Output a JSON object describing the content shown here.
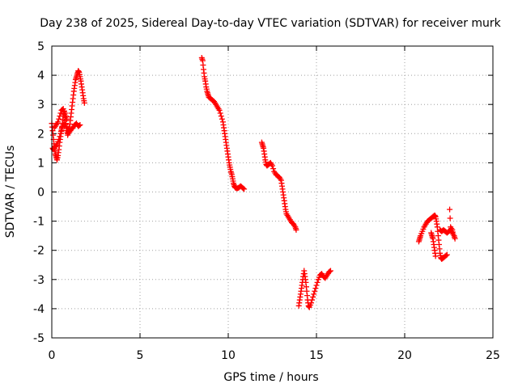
{
  "chart_data": {
    "type": "scatter",
    "title": "Day 238 of 2025, Sidereal Day-to-day VTEC variation (SDTVAR) for receiver murk",
    "xlabel": "GPS time / hours",
    "ylabel": "SDTVAR / TECUs",
    "xlim": [
      0,
      25
    ],
    "ylim": [
      -5,
      5
    ],
    "xticks": [
      "0",
      "5",
      "10",
      "15",
      "20",
      "25"
    ],
    "yticks": [
      "-5",
      "-4",
      "-3",
      "-2",
      "-1",
      "0",
      "1",
      "2",
      "3",
      "4",
      "5"
    ],
    "grid": true,
    "marker": "+",
    "series": [
      {
        "name": "SDTVAR",
        "color": "#ff0000",
        "segments": [
          [
            [
              0.0,
              2.35
            ],
            [
              0.05,
              2.1
            ],
            [
              0.1,
              1.8
            ],
            [
              0.15,
              1.5
            ],
            [
              0.2,
              1.3
            ],
            [
              0.25,
              1.2
            ],
            [
              0.3,
              1.1
            ],
            [
              0.35,
              1.25
            ],
            [
              0.4,
              1.45
            ],
            [
              0.45,
              1.7
            ],
            [
              0.5,
              1.9
            ],
            [
              0.55,
              2.1
            ],
            [
              0.6,
              2.35
            ],
            [
              0.65,
              2.6
            ],
            [
              0.7,
              2.75
            ],
            [
              0.75,
              2.55
            ],
            [
              0.8,
              2.35
            ],
            [
              0.85,
              2.1
            ],
            [
              0.9,
              1.95
            ],
            [
              0.95,
              2.05
            ],
            [
              1.0,
              2.2
            ],
            [
              1.05,
              2.45
            ],
            [
              1.1,
              2.7
            ],
            [
              1.15,
              2.95
            ],
            [
              1.2,
              3.2
            ],
            [
              1.25,
              3.45
            ],
            [
              1.3,
              3.65
            ],
            [
              1.35,
              3.85
            ],
            [
              1.4,
              3.95
            ],
            [
              1.45,
              4.05
            ],
            [
              1.5,
              4.15
            ],
            [
              1.55,
              4.1
            ],
            [
              1.6,
              3.95
            ],
            [
              1.65,
              3.8
            ],
            [
              1.7,
              3.6
            ],
            [
              1.75,
              3.4
            ],
            [
              1.8,
              3.2
            ],
            [
              1.85,
              3.05
            ]
          ],
          [
            [
              0.05,
              1.5
            ],
            [
              0.1,
              1.45
            ],
            [
              0.2,
              1.55
            ],
            [
              0.3,
              1.65
            ],
            [
              0.4,
              1.8
            ],
            [
              0.5,
              2.0
            ],
            [
              0.55,
              2.15
            ],
            [
              0.6,
              2.25
            ],
            [
              0.7,
              2.35
            ],
            [
              0.8,
              2.25
            ],
            [
              0.9,
              2.1
            ],
            [
              1.0,
              2.05
            ],
            [
              1.1,
              2.15
            ],
            [
              1.2,
              2.2
            ],
            [
              1.3,
              2.3
            ],
            [
              1.4,
              2.35
            ],
            [
              1.5,
              2.25
            ],
            [
              1.6,
              2.3
            ]
          ],
          [
            [
              0.15,
              2.2
            ],
            [
              0.25,
              2.3
            ],
            [
              0.35,
              2.4
            ],
            [
              0.45,
              2.6
            ],
            [
              0.55,
              2.8
            ],
            [
              0.65,
              2.85
            ],
            [
              0.75,
              2.7
            ],
            [
              0.85,
              2.5
            ]
          ],
          [
            [
              8.5,
              4.6
            ],
            [
              8.55,
              4.5
            ],
            [
              8.6,
              4.2
            ],
            [
              8.65,
              3.95
            ],
            [
              8.7,
              3.8
            ],
            [
              8.75,
              3.6
            ],
            [
              8.8,
              3.45
            ],
            [
              8.85,
              3.35
            ],
            [
              8.9,
              3.25
            ],
            [
              9.0,
              3.2
            ],
            [
              9.1,
              3.15
            ],
            [
              9.2,
              3.1
            ],
            [
              9.3,
              3.0
            ],
            [
              9.4,
              2.9
            ],
            [
              9.5,
              2.8
            ],
            [
              9.6,
              2.6
            ],
            [
              9.7,
              2.4
            ],
            [
              9.75,
              2.2
            ],
            [
              9.8,
              2.0
            ],
            [
              9.85,
              1.8
            ],
            [
              9.9,
              1.6
            ],
            [
              9.95,
              1.4
            ],
            [
              10.0,
              1.2
            ],
            [
              10.05,
              1.0
            ],
            [
              10.1,
              0.85
            ],
            [
              10.15,
              0.7
            ],
            [
              10.2,
              0.6
            ],
            [
              10.25,
              0.45
            ],
            [
              10.3,
              0.3
            ],
            [
              10.35,
              0.2
            ],
            [
              10.4,
              0.15
            ],
            [
              10.5,
              0.12
            ],
            [
              10.6,
              0.15
            ],
            [
              10.7,
              0.2
            ],
            [
              10.8,
              0.15
            ],
            [
              10.9,
              0.1
            ]
          ],
          [
            [
              11.9,
              1.7
            ],
            [
              11.95,
              1.6
            ],
            [
              12.0,
              1.5
            ],
            [
              12.05,
              1.3
            ],
            [
              12.1,
              1.1
            ],
            [
              12.15,
              0.95
            ],
            [
              12.2,
              0.9
            ],
            [
              12.3,
              0.95
            ],
            [
              12.4,
              1.0
            ],
            [
              12.5,
              0.9
            ],
            [
              12.6,
              0.7
            ],
            [
              12.7,
              0.6
            ],
            [
              12.8,
              0.55
            ],
            [
              12.9,
              0.5
            ],
            [
              13.0,
              0.4
            ],
            [
              13.05,
              0.2
            ],
            [
              13.1,
              0.0
            ],
            [
              13.15,
              -0.2
            ],
            [
              13.2,
              -0.4
            ],
            [
              13.25,
              -0.6
            ],
            [
              13.3,
              -0.75
            ],
            [
              13.4,
              -0.85
            ],
            [
              13.5,
              -0.95
            ],
            [
              13.6,
              -1.05
            ],
            [
              13.7,
              -1.1
            ],
            [
              13.8,
              -1.2
            ],
            [
              13.85,
              -1.3
            ]
          ],
          [
            [
              14.0,
              -3.9
            ],
            [
              14.05,
              -3.7
            ],
            [
              14.1,
              -3.5
            ],
            [
              14.15,
              -3.3
            ],
            [
              14.2,
              -3.1
            ],
            [
              14.25,
              -2.9
            ],
            [
              14.3,
              -2.7
            ],
            [
              14.35,
              -2.9
            ],
            [
              14.4,
              -3.1
            ],
            [
              14.45,
              -3.4
            ],
            [
              14.5,
              -3.7
            ],
            [
              14.55,
              -3.9
            ],
            [
              14.6,
              -3.95
            ],
            [
              14.7,
              -3.8
            ],
            [
              14.8,
              -3.6
            ],
            [
              14.9,
              -3.4
            ],
            [
              15.0,
              -3.2
            ],
            [
              15.1,
              -3.0
            ],
            [
              15.2,
              -2.85
            ],
            [
              15.3,
              -2.8
            ],
            [
              15.4,
              -2.9
            ],
            [
              15.5,
              -2.95
            ],
            [
              15.6,
              -2.85
            ],
            [
              15.7,
              -2.75
            ],
            [
              15.8,
              -2.7
            ]
          ],
          [
            [
              20.8,
              -1.7
            ],
            [
              20.85,
              -1.6
            ],
            [
              20.9,
              -1.5
            ],
            [
              21.0,
              -1.35
            ],
            [
              21.1,
              -1.2
            ],
            [
              21.2,
              -1.1
            ],
            [
              21.3,
              -1.0
            ],
            [
              21.4,
              -0.95
            ],
            [
              21.5,
              -0.9
            ],
            [
              21.6,
              -0.85
            ],
            [
              21.7,
              -0.8
            ],
            [
              21.75,
              -0.85
            ],
            [
              21.8,
              -1.0
            ],
            [
              21.85,
              -1.2
            ],
            [
              21.9,
              -1.5
            ],
            [
              21.95,
              -1.8
            ],
            [
              22.0,
              -2.1
            ],
            [
              22.05,
              -2.25
            ],
            [
              22.1,
              -2.3
            ],
            [
              22.2,
              -2.25
            ],
            [
              22.3,
              -2.2
            ],
            [
              22.4,
              -2.15
            ]
          ],
          [
            [
              21.5,
              -1.4
            ],
            [
              21.55,
              -1.5
            ],
            [
              21.6,
              -1.6
            ],
            [
              21.65,
              -1.8
            ],
            [
              21.7,
              -2.0
            ],
            [
              21.75,
              -2.2
            ]
          ],
          [
            [
              22.0,
              -1.3
            ],
            [
              22.1,
              -1.35
            ],
            [
              22.2,
              -1.3
            ],
            [
              22.3,
              -1.35
            ],
            [
              22.4,
              -1.4
            ],
            [
              22.5,
              -1.35
            ],
            [
              22.6,
              -1.3
            ],
            [
              22.7,
              -1.4
            ],
            [
              22.8,
              -1.5
            ],
            [
              22.85,
              -1.6
            ]
          ],
          [
            [
              22.55,
              -0.6
            ],
            [
              22.6,
              -1.2
            ],
            [
              22.7,
              -1.3
            ],
            [
              22.75,
              -1.45
            ]
          ]
        ]
      }
    ]
  }
}
